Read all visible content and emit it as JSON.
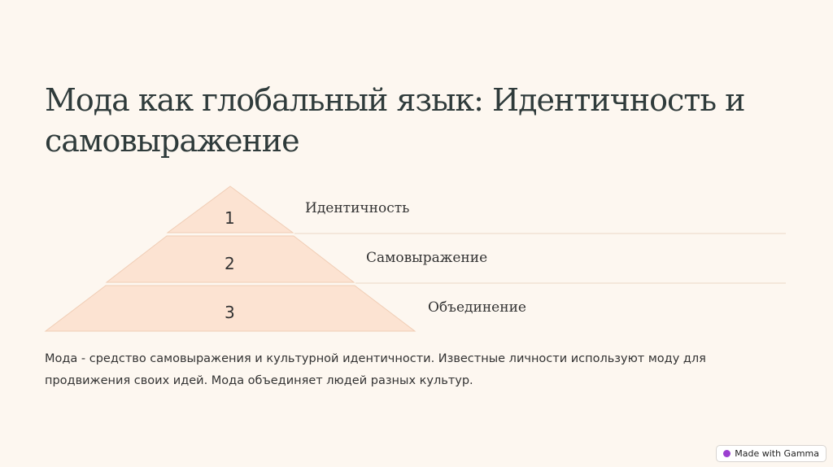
{
  "title": "Мода как глобальный язык: Идентичность и самовыражение",
  "pyramid": {
    "fill": "#fce3d2",
    "tiers": [
      {
        "number": "1",
        "label": "Идентичность"
      },
      {
        "number": "2",
        "label": "Самовыражение"
      },
      {
        "number": "3",
        "label": "Объединение"
      }
    ]
  },
  "body": "Мода - средство самовыражения и культурной идентичности. Известные личности используют моду для продвижения своих идей. Мода объединяет людей разных культур.",
  "badge": {
    "label": "Made with Gamma",
    "icon": "gamma-logo-icon"
  }
}
